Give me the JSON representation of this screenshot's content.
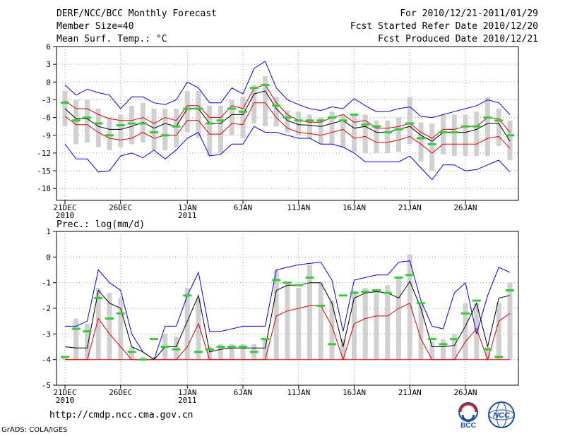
{
  "header": {
    "title": "DERF/NCC/BCC Monthly Forecast",
    "member_size": "Member Size=40",
    "variable": "Mean Surf. Temp.: °C",
    "period": "For 2010/12/21-2011/01/29",
    "started": "Fcst Started Refer Date 2010/12/20",
    "produced": "Fcst Produced Date 2010/12/21"
  },
  "footer": {
    "url": "http://cmdp.ncc.cma.gov.cn",
    "grads": "GrADS: COLA/IGES",
    "logo_bcc": "BCC",
    "logo_ncc": "NCC"
  },
  "colors": {
    "max": "#0000ee",
    "min": "#0000ee",
    "mean": "#000000",
    "spread": "#dd0000",
    "member_box": "#d0d0d0",
    "median": "#33cc33"
  },
  "chart_data": [
    {
      "type": "box-line",
      "title": "Mean Surf. Temp.: °C",
      "x_tick_labels": [
        "21DEC",
        "2010",
        "26DEC",
        "1JAN",
        "2011",
        "6JAN",
        "11JAN",
        "16JAN",
        "21JAN",
        "26JAN"
      ],
      "xlim": [
        0,
        40
      ],
      "ylim": [
        -20,
        6
      ],
      "yticks": [
        6,
        3,
        0,
        -3,
        -6,
        -9,
        -12,
        -15,
        -18
      ],
      "ytick_labels": [
        "6",
        "3",
        "0",
        "-3",
        "-6",
        "-9",
        "-12",
        "-15",
        "-18"
      ],
      "series": [
        {
          "name": "max",
          "values": [
            -0.5,
            -2.2,
            -1.2,
            -1.8,
            -2.2,
            -4.5,
            -2.5,
            -2.5,
            -3.5,
            -3.8,
            -3.0,
            0.0,
            -1.0,
            -3.5,
            -3.5,
            -1.0,
            -2.0,
            2.3,
            3.5,
            -1.0,
            -3.0,
            -3.8,
            -4.5,
            -4.8,
            -4.2,
            -4.5,
            -2.8,
            -4.0,
            -5.0,
            -5.0,
            -4.5,
            -4.2,
            -5.8,
            -6.0,
            -5.5,
            -5.0,
            -4.5,
            -4.0,
            -3.0,
            -3.5,
            -5.5
          ]
        },
        {
          "name": "mean_plus",
          "values": [
            -3.2,
            -4.5,
            -4.5,
            -5.5,
            -6.2,
            -6.5,
            -6.5,
            -6.0,
            -7.0,
            -6.0,
            -6.5,
            -4.0,
            -4.0,
            -6.0,
            -6.0,
            -4.0,
            -4.5,
            -1.0,
            -0.5,
            -3.5,
            -5.5,
            -6.5,
            -6.8,
            -6.8,
            -6.0,
            -5.5,
            -6.8,
            -6.5,
            -7.8,
            -7.8,
            -7.5,
            -7.0,
            -8.5,
            -9.5,
            -8.0,
            -8.0,
            -7.5,
            -7.5,
            -6.0,
            -6.2,
            -8.5
          ]
        },
        {
          "name": "mean",
          "values": [
            -4.5,
            -6.2,
            -6.2,
            -7.5,
            -8.0,
            -8.0,
            -7.5,
            -6.8,
            -7.8,
            -7.0,
            -7.5,
            -4.5,
            -4.5,
            -7.0,
            -7.0,
            -5.5,
            -5.5,
            -2.0,
            -1.5,
            -4.5,
            -6.5,
            -7.2,
            -7.3,
            -7.5,
            -7.0,
            -6.5,
            -7.8,
            -7.5,
            -8.5,
            -8.5,
            -8.0,
            -7.5,
            -9.0,
            -10.0,
            -8.5,
            -8.5,
            -8.5,
            -8.0,
            -7.0,
            -7.0,
            -10.0
          ]
        },
        {
          "name": "mean_minus",
          "values": [
            -5.8,
            -7.2,
            -7.2,
            -8.5,
            -9.5,
            -9.8,
            -9.5,
            -8.5,
            -9.5,
            -9.0,
            -9.0,
            -6.5,
            -6.5,
            -8.8,
            -8.8,
            -7.0,
            -7.2,
            -3.5,
            -3.5,
            -6.0,
            -7.8,
            -8.5,
            -8.7,
            -9.0,
            -8.5,
            -8.0,
            -9.5,
            -9.2,
            -10.2,
            -10.2,
            -9.8,
            -9.2,
            -10.5,
            -12.0,
            -10.5,
            -10.5,
            -10.5,
            -10.5,
            -9.5,
            -9.2,
            -11.2
          ]
        },
        {
          "name": "min",
          "values": [
            -10.5,
            -13.0,
            -13.0,
            -15.2,
            -15.0,
            -12.5,
            -12.0,
            -12.8,
            -11.5,
            -13.0,
            -11.5,
            -9.5,
            -8.5,
            -12.5,
            -12.2,
            -10.5,
            -10.5,
            -7.5,
            -8.5,
            -8.5,
            -9.0,
            -9.5,
            -9.5,
            -10.5,
            -10.5,
            -11.0,
            -12.0,
            -13.5,
            -13.5,
            -13.5,
            -13.5,
            -12.5,
            -14.5,
            -16.5,
            -14.0,
            -14.0,
            -15.0,
            -14.8,
            -14.0,
            -13.2,
            -15.2
          ]
        },
        {
          "name": "box_q_low",
          "values": [
            -7.5,
            -10.5,
            -10.2,
            -11.0,
            -11.5,
            -11.0,
            -10.5,
            -10.2,
            -11.5,
            -11.5,
            -11.0,
            -8.5,
            -9.5,
            -12.5,
            -12.0,
            -9.0,
            -9.5,
            -7.0,
            -7.5,
            -7.5,
            -8.5,
            -9.0,
            -9.5,
            -10.5,
            -10.5,
            -11.0,
            -11.8,
            -12.0,
            -12.0,
            -12.0,
            -11.8,
            -10.5,
            -13.5,
            -15.0,
            -12.2,
            -12.5,
            -12.5,
            -12.5,
            -12.5,
            -10.8,
            -13.2
          ]
        },
        {
          "name": "box_q_high",
          "values": [
            -1.5,
            -3.0,
            -3.0,
            -4.5,
            -6.0,
            -5.5,
            -4.0,
            -3.5,
            -4.5,
            -4.5,
            -4.5,
            -1.5,
            -1.5,
            -4.0,
            -4.0,
            -3.0,
            -2.5,
            -0.5,
            1.0,
            -2.5,
            -4.8,
            -5.0,
            -5.5,
            -6.0,
            -5.0,
            -5.5,
            -5.5,
            -5.5,
            -6.5,
            -6.5,
            -6.0,
            -2.5,
            -6.8,
            -7.0,
            -5.5,
            -5.5,
            -5.5,
            -5.0,
            -2.5,
            -4.5,
            -6.5
          ]
        },
        {
          "name": "median",
          "values": [
            -3.5,
            -6.5,
            -6.0,
            -7.0,
            -9.0,
            -7.3,
            -7.0,
            -7.0,
            -8.5,
            -9.0,
            -7.5,
            -4.5,
            -4.5,
            -7.0,
            -6.5,
            -4.5,
            -5.0,
            -1.0,
            -0.5,
            -4.0,
            -6.0,
            -6.5,
            -6.5,
            -6.5,
            -6.0,
            -6.5,
            -5.5,
            -7.2,
            -7.5,
            -8.5,
            -8.0,
            -7.0,
            -9.5,
            -10.5,
            -8.5,
            -8.5,
            -7.5,
            -7.5,
            -6.0,
            -6.5,
            -9.0
          ]
        }
      ]
    },
    {
      "type": "box-line",
      "title": "Prec.: log(mm/d)",
      "x_tick_labels": [
        "21DEC",
        "2010",
        "26DEC",
        "1JAN",
        "2011",
        "6JAN",
        "11JAN",
        "16JAN",
        "21JAN",
        "26JAN"
      ],
      "xlim": [
        0,
        40
      ],
      "ylim": [
        -5,
        1
      ],
      "yticks": [
        1,
        0,
        -1,
        -2,
        -3,
        -4,
        -5
      ],
      "ytick_labels": [
        "1",
        "0",
        "-1",
        "-2",
        "-3",
        "-4",
        "-5"
      ],
      "series": [
        {
          "name": "max",
          "values": [
            -2.7,
            -2.7,
            -2.5,
            -0.5,
            -1.0,
            -1.3,
            -3.0,
            -3.7,
            -4.0,
            -2.7,
            -2.7,
            -1.5,
            -0.6,
            -2.9,
            -2.9,
            -2.8,
            -2.7,
            -2.7,
            -2.7,
            -0.5,
            -0.4,
            -0.3,
            -0.25,
            -0.2,
            -0.9,
            -2.9,
            -0.9,
            -0.8,
            -0.7,
            -0.7,
            -0.2,
            -0.15,
            -1.7,
            -2.7,
            -2.8,
            -1.4,
            -1.0,
            -3.0,
            -1.5,
            -0.4,
            -0.6
          ]
        },
        {
          "name": "mean",
          "values": [
            -3.5,
            -3.55,
            -3.55,
            -1.3,
            -1.8,
            -2.0,
            -3.5,
            -3.7,
            -4.0,
            -3.5,
            -3.5,
            -2.5,
            -1.5,
            -3.7,
            -3.6,
            -3.55,
            -3.55,
            -3.55,
            -3.55,
            -1.3,
            -1.1,
            -1.1,
            -1.0,
            -1.0,
            -1.8,
            -3.5,
            -1.6,
            -1.4,
            -1.35,
            -1.4,
            -1.6,
            -0.95,
            -2.0,
            -3.5,
            -3.5,
            -3.45,
            -2.7,
            -1.8,
            -3.5,
            -1.6,
            -1.5
          ]
        },
        {
          "name": "spread_low",
          "values": [
            -4.0,
            -4.0,
            -4.0,
            -2.4,
            -3.0,
            -3.5,
            -4.0,
            -4.0,
            -4.0,
            -4.0,
            -4.0,
            -3.5,
            -2.6,
            -4.0,
            -4.0,
            -4.0,
            -4.0,
            -4.0,
            -4.0,
            -2.3,
            -2.1,
            -2.0,
            -1.9,
            -1.9,
            -2.7,
            -4.0,
            -2.6,
            -2.4,
            -2.3,
            -2.3,
            -2.0,
            -1.8,
            -3.2,
            -4.0,
            -4.0,
            -4.0,
            -3.3,
            -2.8,
            -4.0,
            -2.5,
            -2.2
          ]
        },
        {
          "name": "floor",
          "values": [
            -4.0,
            -4.0,
            -4.0,
            -4.0,
            -4.0,
            -4.0,
            -4.0,
            -4.0,
            -4.0,
            -4.0,
            -4.0,
            -4.0,
            -4.0,
            -4.0,
            -4.0,
            -4.0,
            -4.0,
            -4.0,
            -4.0,
            -4.0,
            -4.0,
            -4.0,
            -4.0,
            -4.0,
            -4.0,
            -4.0,
            -4.0,
            -4.0,
            -4.0,
            -4.0,
            -4.0,
            -4.0,
            -4.0,
            -4.0,
            -4.0,
            -4.0,
            -4.0,
            -4.0,
            -4.0,
            -4.0,
            -4.0
          ]
        },
        {
          "name": "box_q_low",
          "values": [
            -4.0,
            -4.0,
            -4.0,
            -4.0,
            -4.0,
            -4.0,
            -4.0,
            -4.0,
            -4.0,
            -4.0,
            -4.0,
            -4.0,
            -4.0,
            -4.0,
            -4.0,
            -4.0,
            -4.0,
            -4.0,
            -4.0,
            -4.0,
            -4.0,
            -4.0,
            -4.0,
            -4.0,
            -4.0,
            -4.0,
            -4.0,
            -4.0,
            -4.0,
            -4.0,
            -4.0,
            -4.0,
            -4.0,
            -4.0,
            -4.0,
            -4.0,
            -4.0,
            -4.0,
            -4.0,
            -4.0,
            -4.0
          ]
        },
        {
          "name": "box_q_high",
          "values": [
            -3.9,
            -2.4,
            -2.6,
            -1.2,
            -1.4,
            -1.6,
            -3.5,
            -3.9,
            -3.9,
            -3.0,
            -3.1,
            -1.2,
            -1.6,
            -3.5,
            -3.4,
            -3.4,
            -3.4,
            -3.4,
            -3.2,
            -0.5,
            -1.0,
            -1.2,
            -0.3,
            -1.0,
            -1.7,
            -3.2,
            -1.3,
            -1.2,
            -1.3,
            -1.1,
            -0.8,
            0.1,
            -1.8,
            -3.3,
            -3.2,
            -3.0,
            -1.8,
            -1.8,
            -3.5,
            -1.8,
            -1.0
          ]
        },
        {
          "name": "median",
          "values": [
            -3.9,
            -2.8,
            -2.9,
            -1.6,
            -2.4,
            -2.2,
            -3.7,
            -4.0,
            -3.2,
            -3.5,
            -3.6,
            -1.5,
            -3.7,
            -3.6,
            -3.5,
            -3.5,
            -3.5,
            -3.7,
            -3.2,
            -0.9,
            -1.0,
            -1.1,
            -0.8,
            -1.9,
            -3.4,
            -1.5,
            -1.4,
            -1.35,
            -1.3,
            -1.4,
            -0.8,
            -0.7,
            -1.8,
            -3.2,
            -3.4,
            -3.2,
            -2.2,
            -1.7,
            -3.6,
            -3.9,
            -1.3
          ]
        }
      ]
    }
  ]
}
